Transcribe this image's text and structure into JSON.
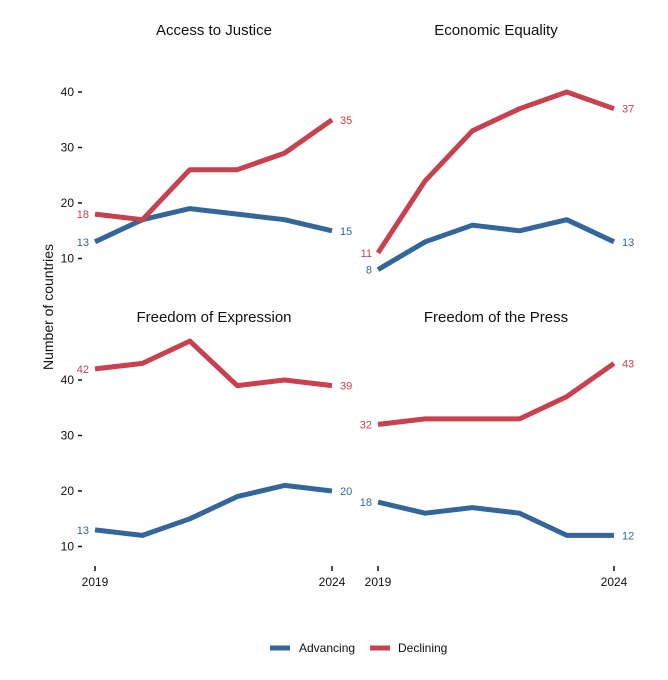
{
  "chart_data": {
    "type": "line",
    "ylabel": "Number of countries",
    "x": [
      2019,
      2020,
      2021,
      2022,
      2023,
      2024
    ],
    "x_tick_labels": [
      "2019",
      "2024"
    ],
    "legend": {
      "position": "bottom",
      "entries": [
        {
          "name": "Advancing",
          "color": "#336699"
        },
        {
          "name": "Declining",
          "color": "#c9404f"
        }
      ]
    },
    "grid": false,
    "panels": [
      {
        "title": "Access to Justice",
        "ylim": [
          7,
          47
        ],
        "y_ticks": [
          10,
          20,
          30,
          40
        ],
        "series": [
          {
            "name": "Advancing",
            "values": [
              13,
              17,
              19,
              18,
              17,
              15
            ]
          },
          {
            "name": "Declining",
            "values": [
              18,
              17,
              26,
              26,
              29,
              35
            ]
          }
        ]
      },
      {
        "title": "Economic Equality",
        "ylim": [
          7,
          47
        ],
        "y_ticks": [
          10,
          20,
          30,
          40
        ],
        "series": [
          {
            "name": "Advancing",
            "values": [
              8,
              13,
              16,
              15,
              17,
              13
            ]
          },
          {
            "name": "Declining",
            "values": [
              11,
              24,
              33,
              37,
              40,
              37
            ]
          }
        ]
      },
      {
        "title": "Freedom of Expression",
        "ylim": [
          7,
          47
        ],
        "y_ticks": [
          10,
          20,
          30,
          40
        ],
        "series": [
          {
            "name": "Advancing",
            "values": [
              13,
              12,
              15,
              19,
              21,
              20
            ]
          },
          {
            "name": "Declining",
            "values": [
              42,
              43,
              47,
              39,
              40,
              39
            ]
          }
        ]
      },
      {
        "title": "Freedom of the Press",
        "ylim": [
          7,
          47
        ],
        "y_ticks": [
          10,
          20,
          30,
          40
        ],
        "series": [
          {
            "name": "Advancing",
            "values": [
              18,
              16,
              17,
              16,
              12,
              12
            ]
          },
          {
            "name": "Declining",
            "values": [
              32,
              33,
              33,
              33,
              37,
              43
            ]
          }
        ]
      }
    ]
  }
}
